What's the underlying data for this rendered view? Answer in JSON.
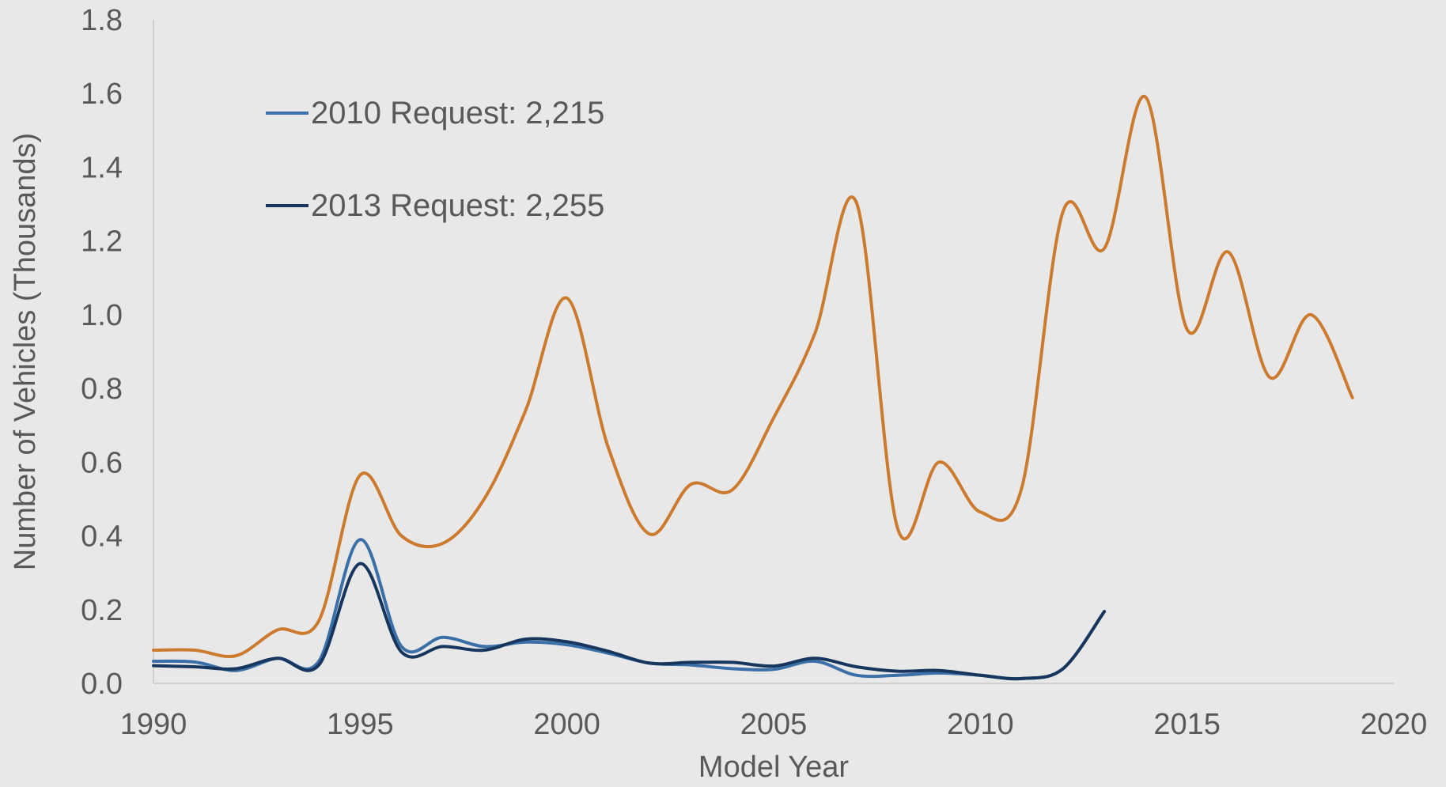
{
  "chart_data": {
    "type": "line",
    "title": "",
    "xlabel": "Model Year",
    "ylabel": "Number of Vehicles (Thousands)",
    "xlim": [
      1990,
      2020
    ],
    "ylim": [
      0,
      1.8
    ],
    "x_ticks": [
      1990,
      1995,
      2000,
      2005,
      2010,
      2015,
      2020
    ],
    "y_ticks": [
      "0.0",
      "0.2",
      "0.4",
      "0.6",
      "0.8",
      "1.0",
      "1.2",
      "1.4",
      "1.6",
      "1.8"
    ],
    "grid": false,
    "legend_position": "top-left",
    "series": [
      {
        "name": "2010 Request: 2,215",
        "color": "#3a6fa8",
        "in_legend": true,
        "x": [
          1990,
          1991,
          1992,
          1993,
          1994,
          1995,
          1996,
          1997,
          1998,
          1999,
          2000,
          2001,
          2002,
          2003,
          2004,
          2005,
          2006,
          2007,
          2008,
          2009,
          2010,
          2011,
          2012,
          2013
        ],
        "y": [
          0.06,
          0.058,
          0.035,
          0.068,
          0.06,
          0.39,
          0.1,
          0.125,
          0.1,
          0.112,
          0.105,
          0.082,
          0.055,
          0.05,
          0.04,
          0.038,
          0.06,
          0.022,
          0.022,
          0.028,
          0.022,
          0.013,
          0.04,
          0.195
        ]
      },
      {
        "name": "2013 Request: 2,255",
        "color": "#17365d",
        "in_legend": true,
        "x": [
          1990,
          1991,
          1992,
          1993,
          1994,
          1995,
          1996,
          1997,
          1998,
          1999,
          2000,
          2001,
          2002,
          2003,
          2004,
          2005,
          2006,
          2007,
          2008,
          2009,
          2010,
          2011,
          2012,
          2013
        ],
        "y": [
          0.048,
          0.045,
          0.04,
          0.068,
          0.05,
          0.325,
          0.085,
          0.1,
          0.09,
          0.12,
          0.113,
          0.087,
          0.055,
          0.057,
          0.057,
          0.047,
          0.068,
          0.045,
          0.033,
          0.035,
          0.022,
          0.013,
          0.04,
          0.195
        ]
      },
      {
        "name": "",
        "color": "#cc7a2d",
        "in_legend": false,
        "x": [
          1990,
          1991,
          1992,
          1993,
          1994,
          1995,
          1996,
          1997,
          1998,
          1999,
          2000,
          2001,
          2002,
          2003,
          2004,
          2005,
          2006,
          2007,
          2008,
          2009,
          2010,
          2011,
          2012,
          2013,
          2014,
          2015,
          2016,
          2017,
          2018,
          2019
        ],
        "y": [
          0.09,
          0.09,
          0.075,
          0.145,
          0.17,
          0.565,
          0.4,
          0.38,
          0.5,
          0.74,
          1.045,
          0.64,
          0.405,
          0.54,
          0.525,
          0.72,
          0.95,
          1.305,
          0.42,
          0.6,
          0.465,
          0.53,
          1.28,
          1.18,
          1.59,
          0.96,
          1.17,
          0.83,
          1.0,
          0.775
        ]
      }
    ]
  }
}
